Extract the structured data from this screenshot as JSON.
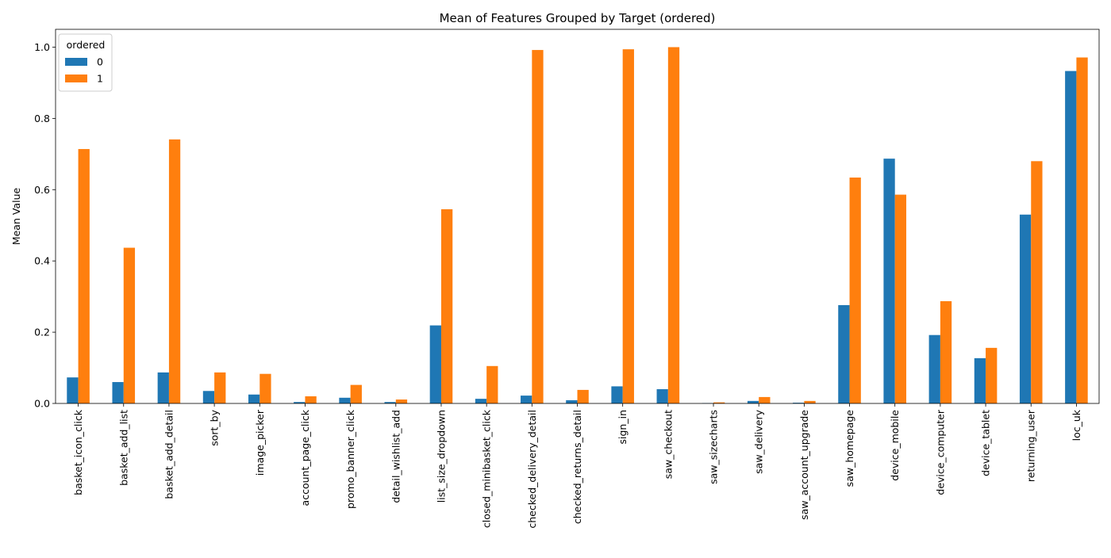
{
  "chart_data": {
    "type": "bar",
    "title": "Mean of Features Grouped by Target (ordered)",
    "xlabel": "",
    "ylabel": "Mean Value",
    "ylim": [
      0,
      1.05
    ],
    "yticks": [
      0.0,
      0.2,
      0.4,
      0.6,
      0.8,
      1.0
    ],
    "ytick_labels": [
      "0.0",
      "0.2",
      "0.4",
      "0.6",
      "0.8",
      "1.0"
    ],
    "grid": false,
    "legend": {
      "title": "ordered",
      "placement": "top-left"
    },
    "categories": [
      "basket_icon_click",
      "basket_add_list",
      "basket_add_detail",
      "sort_by",
      "image_picker",
      "account_page_click",
      "promo_banner_click",
      "detail_wishlist_add",
      "list_size_dropdown",
      "closed_minibasket_click",
      "checked_delivery_detail",
      "checked_returns_detail",
      "sign_in",
      "saw_checkout",
      "saw_sizecharts",
      "saw_delivery",
      "saw_account_upgrade",
      "saw_homepage",
      "device_mobile",
      "device_computer",
      "device_tablet",
      "returning_user",
      "loc_uk"
    ],
    "series": [
      {
        "name": "0",
        "color": "#1f77b4",
        "values": [
          0.073,
          0.06,
          0.087,
          0.035,
          0.025,
          0.004,
          0.016,
          0.004,
          0.219,
          0.013,
          0.022,
          0.009,
          0.048,
          0.04,
          0.001,
          0.007,
          0.002,
          0.276,
          0.687,
          0.192,
          0.127,
          0.53,
          0.933
        ]
      },
      {
        "name": "1",
        "color": "#ff7f0e",
        "values": [
          0.714,
          0.437,
          0.741,
          0.087,
          0.083,
          0.02,
          0.052,
          0.011,
          0.545,
          0.105,
          0.992,
          0.038,
          0.994,
          1.0,
          0.003,
          0.018,
          0.007,
          0.634,
          0.586,
          0.287,
          0.156,
          0.68,
          0.971
        ]
      }
    ]
  }
}
